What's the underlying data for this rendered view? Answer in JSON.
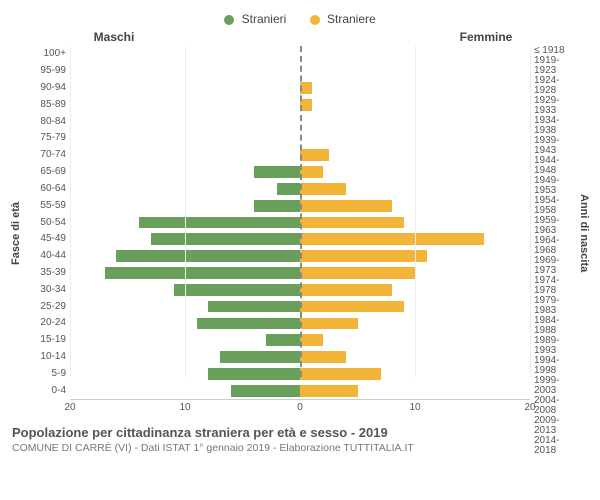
{
  "chart": {
    "type": "population-pyramid",
    "legend": {
      "male": {
        "label": "Stranieri",
        "color": "#6a9e5b"
      },
      "female": {
        "label": "Straniere",
        "color": "#f2b53a"
      }
    },
    "column_titles": {
      "left": "Maschi",
      "right": "Femmine"
    },
    "y_axis_left_label": "Fasce di età",
    "y_axis_right_label": "Anni di nascita",
    "x_axis": {
      "max": 20,
      "ticks": [
        20,
        10,
        0,
        10,
        20
      ]
    },
    "grid_color": "#eeeeee",
    "centerline_color": "#888888",
    "background_color": "#ffffff",
    "bar_height_ratio": 0.7,
    "rows": [
      {
        "age": "100+",
        "birth": "≤ 1918",
        "m": 0,
        "f": 0
      },
      {
        "age": "95-99",
        "birth": "1919-1923",
        "m": 0,
        "f": 0
      },
      {
        "age": "90-94",
        "birth": "1924-1928",
        "m": 0,
        "f": 1
      },
      {
        "age": "85-89",
        "birth": "1929-1933",
        "m": 0,
        "f": 1
      },
      {
        "age": "80-84",
        "birth": "1934-1938",
        "m": 0,
        "f": 0
      },
      {
        "age": "75-79",
        "birth": "1939-1943",
        "m": 0,
        "f": 0
      },
      {
        "age": "70-74",
        "birth": "1944-1948",
        "m": 0,
        "f": 2.5
      },
      {
        "age": "65-69",
        "birth": "1949-1953",
        "m": 4,
        "f": 2
      },
      {
        "age": "60-64",
        "birth": "1954-1958",
        "m": 2,
        "f": 4
      },
      {
        "age": "55-59",
        "birth": "1959-1963",
        "m": 4,
        "f": 8
      },
      {
        "age": "50-54",
        "birth": "1964-1968",
        "m": 14,
        "f": 9
      },
      {
        "age": "45-49",
        "birth": "1969-1973",
        "m": 13,
        "f": 16
      },
      {
        "age": "40-44",
        "birth": "1974-1978",
        "m": 16,
        "f": 11
      },
      {
        "age": "35-39",
        "birth": "1979-1983",
        "m": 17,
        "f": 10
      },
      {
        "age": "30-34",
        "birth": "1984-1988",
        "m": 11,
        "f": 8
      },
      {
        "age": "25-29",
        "birth": "1989-1993",
        "m": 8,
        "f": 9
      },
      {
        "age": "20-24",
        "birth": "1994-1998",
        "m": 9,
        "f": 5
      },
      {
        "age": "15-19",
        "birth": "1999-2003",
        "m": 3,
        "f": 2
      },
      {
        "age": "10-14",
        "birth": "2004-2008",
        "m": 7,
        "f": 4
      },
      {
        "age": "5-9",
        "birth": "2009-2013",
        "m": 8,
        "f": 7
      },
      {
        "age": "0-4",
        "birth": "2014-2018",
        "m": 6,
        "f": 5
      }
    ]
  },
  "footer": {
    "title": "Popolazione per cittadinanza straniera per età e sesso - 2019",
    "subtitle": "COMUNE DI CARRÈ (VI) - Dati ISTAT 1° gennaio 2019 - Elaborazione TUTTITALIA.IT"
  }
}
